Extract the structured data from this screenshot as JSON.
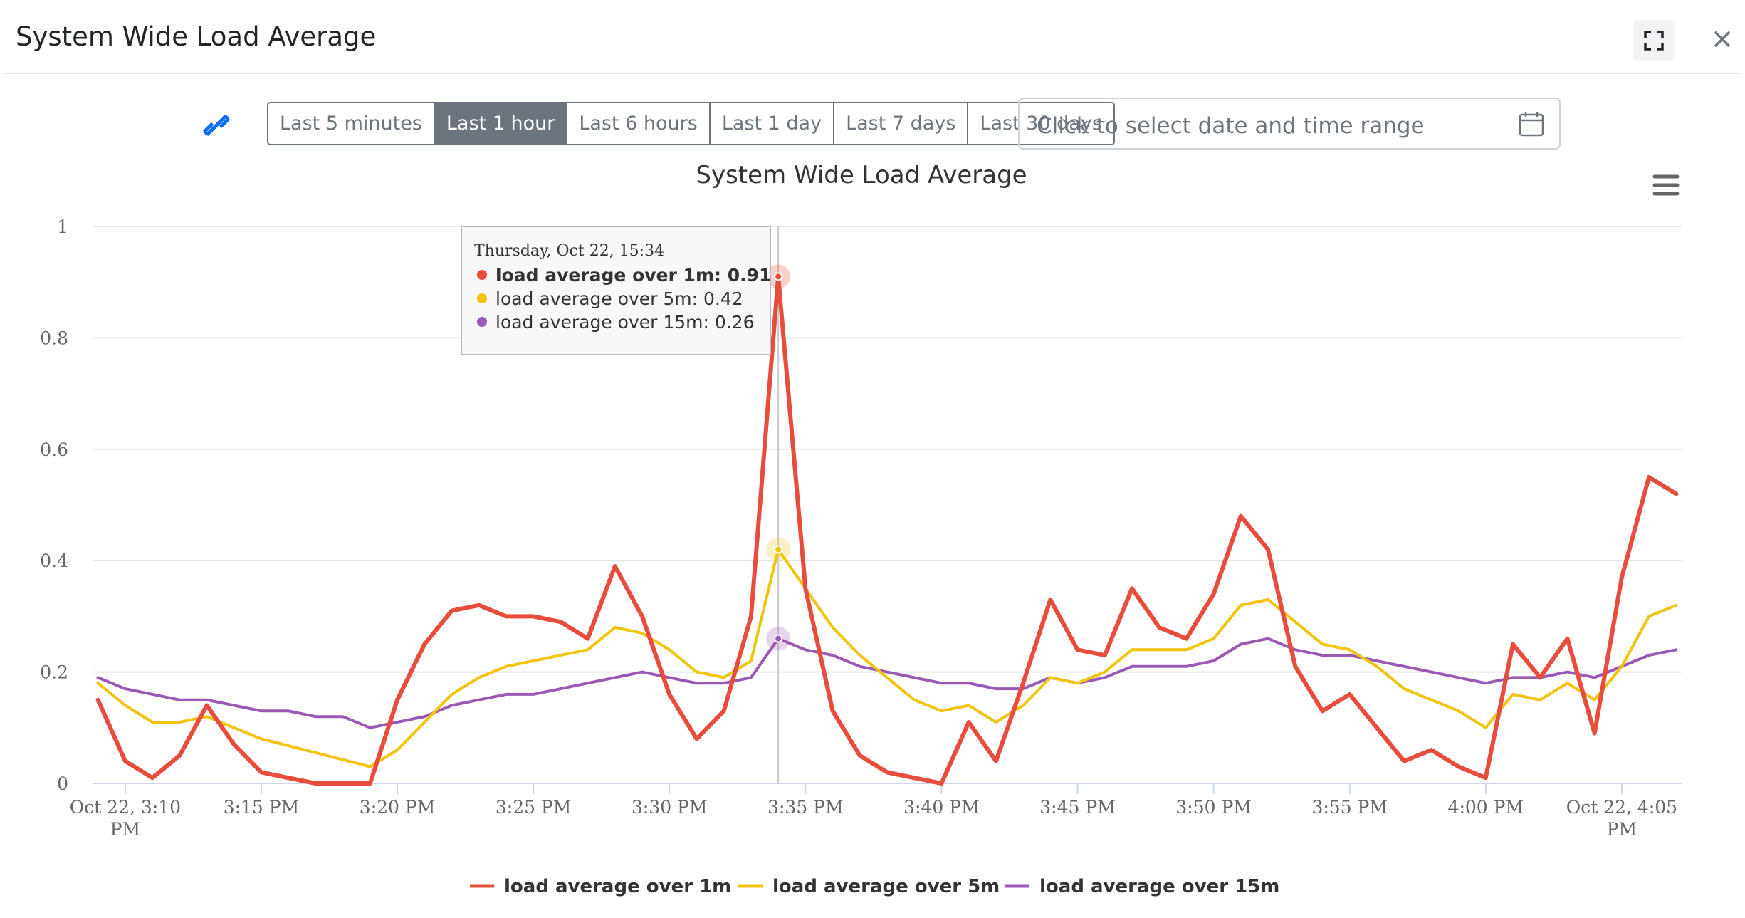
{
  "modal": {
    "title": "System Wide Load Average"
  },
  "icons": {
    "expand": "expand-icon",
    "close": "close-icon",
    "link": "link-icon",
    "calendar": "calendar-icon",
    "menu": "hamburger-menu-icon"
  },
  "time_ranges": [
    {
      "label": "Last 5 minutes",
      "active": false
    },
    {
      "label": "Last 1 hour",
      "active": true
    },
    {
      "label": "Last 6 hours",
      "active": false
    },
    {
      "label": "Last 1 day",
      "active": false
    },
    {
      "label": "Last 7 days",
      "active": false
    },
    {
      "label": "Last 30 days",
      "active": false
    }
  ],
  "date_picker": {
    "placeholder": "Click to select date and time range"
  },
  "colors": {
    "active_btn": "#6c757d",
    "link": "#0d6efd",
    "series_1m": "#e74c3c",
    "series_5m": "#f1c40f",
    "series_15m": "#9b59b6"
  },
  "chart_data": {
    "type": "line",
    "title": "System Wide Load Average",
    "xlabel": "",
    "ylabel": "",
    "ylim": [
      0,
      1
    ],
    "yticks": [
      0,
      0.2,
      0.4,
      0.6,
      0.8,
      1
    ],
    "ytick_labels": [
      "0",
      "0.2",
      "0.4",
      "0.6",
      "0.8",
      "1"
    ],
    "x_unit": "time (minutes, Oct 22 PM)",
    "xlim": [
      "3:09 PM",
      "4:07 PM"
    ],
    "x_ticks": [
      {
        "label": "Oct 22, 3:10 PM",
        "time": "3:10 PM"
      },
      {
        "label": "3:15 PM",
        "time": "3:15 PM"
      },
      {
        "label": "3:20 PM",
        "time": "3:20 PM"
      },
      {
        "label": "3:25 PM",
        "time": "3:25 PM"
      },
      {
        "label": "3:30 PM",
        "time": "3:30 PM"
      },
      {
        "label": "3:35 PM",
        "time": "3:35 PM"
      },
      {
        "label": "3:40 PM",
        "time": "3:40 PM"
      },
      {
        "label": "3:45 PM",
        "time": "3:45 PM"
      },
      {
        "label": "3:50 PM",
        "time": "3:50 PM"
      },
      {
        "label": "3:55 PM",
        "time": "3:55 PM"
      },
      {
        "label": "4:00 PM",
        "time": "4:00 PM"
      },
      {
        "label": "Oct 22, 4:05 PM",
        "time": "4:05 PM"
      }
    ],
    "grid": true,
    "legend": "bottom-center",
    "series": [
      {
        "name": "load average over 1m",
        "color": "#e74c3c",
        "points": [
          [
            "3:09 PM",
            0.15
          ],
          [
            "3:10 PM",
            0.04
          ],
          [
            "3:11 PM",
            0.01
          ],
          [
            "3:12 PM",
            0.05
          ],
          [
            "3:13 PM",
            0.14
          ],
          [
            "3:14 PM",
            0.07
          ],
          [
            "3:15 PM",
            0.02
          ],
          [
            "3:17 PM",
            0.0
          ],
          [
            "3:19 PM",
            0.0
          ],
          [
            "3:20 PM",
            0.15
          ],
          [
            "3:21 PM",
            0.25
          ],
          [
            "3:22 PM",
            0.31
          ],
          [
            "3:23 PM",
            0.32
          ],
          [
            "3:24 PM",
            0.3
          ],
          [
            "3:25 PM",
            0.3
          ],
          [
            "3:26 PM",
            0.29
          ],
          [
            "3:27 PM",
            0.26
          ],
          [
            "3:28 PM",
            0.39
          ],
          [
            "3:29 PM",
            0.3
          ],
          [
            "3:30 PM",
            0.16
          ],
          [
            "3:31 PM",
            0.08
          ],
          [
            "3:32 PM",
            0.13
          ],
          [
            "3:33 PM",
            0.3
          ],
          [
            "3:34 PM",
            0.91
          ],
          [
            "3:35 PM",
            0.35
          ],
          [
            "3:36 PM",
            0.13
          ],
          [
            "3:37 PM",
            0.05
          ],
          [
            "3:38 PM",
            0.02
          ],
          [
            "3:40 PM",
            0.0
          ],
          [
            "3:41 PM",
            0.11
          ],
          [
            "3:42 PM",
            0.04
          ],
          [
            "3:43 PM",
            0.18
          ],
          [
            "3:44 PM",
            0.33
          ],
          [
            "3:45 PM",
            0.24
          ],
          [
            "3:46 PM",
            0.23
          ],
          [
            "3:47 PM",
            0.35
          ],
          [
            "3:48 PM",
            0.28
          ],
          [
            "3:49 PM",
            0.26
          ],
          [
            "3:50 PM",
            0.34
          ],
          [
            "3:51 PM",
            0.48
          ],
          [
            "3:52 PM",
            0.42
          ],
          [
            "3:53 PM",
            0.21
          ],
          [
            "3:54 PM",
            0.13
          ],
          [
            "3:55 PM",
            0.16
          ],
          [
            "3:56 PM",
            0.1
          ],
          [
            "3:57 PM",
            0.04
          ],
          [
            "3:58 PM",
            0.06
          ],
          [
            "3:59 PM",
            0.03
          ],
          [
            "4:00 PM",
            0.01
          ],
          [
            "4:01 PM",
            0.25
          ],
          [
            "4:02 PM",
            0.19
          ],
          [
            "4:03 PM",
            0.26
          ],
          [
            "4:04 PM",
            0.09
          ],
          [
            "4:05 PM",
            0.37
          ],
          [
            "4:06 PM",
            0.55
          ],
          [
            "4:07 PM",
            0.52
          ]
        ]
      },
      {
        "name": "load average over 5m",
        "color": "#f1c40f",
        "points": [
          [
            "3:09 PM",
            0.18
          ],
          [
            "3:10 PM",
            0.14
          ],
          [
            "3:11 PM",
            0.11
          ],
          [
            "3:12 PM",
            0.11
          ],
          [
            "3:13 PM",
            0.12
          ],
          [
            "3:14 PM",
            0.1
          ],
          [
            "3:15 PM",
            0.08
          ],
          [
            "3:19 PM",
            0.03
          ],
          [
            "3:20 PM",
            0.06
          ],
          [
            "3:21 PM",
            0.11
          ],
          [
            "3:22 PM",
            0.16
          ],
          [
            "3:23 PM",
            0.19
          ],
          [
            "3:24 PM",
            0.21
          ],
          [
            "3:26 PM",
            0.23
          ],
          [
            "3:27 PM",
            0.24
          ],
          [
            "3:28 PM",
            0.28
          ],
          [
            "3:29 PM",
            0.27
          ],
          [
            "3:30 PM",
            0.24
          ],
          [
            "3:31 PM",
            0.2
          ],
          [
            "3:32 PM",
            0.19
          ],
          [
            "3:33 PM",
            0.22
          ],
          [
            "3:34 PM",
            0.42
          ],
          [
            "3:35 PM",
            0.35
          ],
          [
            "3:36 PM",
            0.28
          ],
          [
            "3:37 PM",
            0.23
          ],
          [
            "3:38 PM",
            0.19
          ],
          [
            "3:39 PM",
            0.15
          ],
          [
            "3:40 PM",
            0.13
          ],
          [
            "3:41 PM",
            0.14
          ],
          [
            "3:42 PM",
            0.11
          ],
          [
            "3:43 PM",
            0.14
          ],
          [
            "3:44 PM",
            0.19
          ],
          [
            "3:45 PM",
            0.18
          ],
          [
            "3:46 PM",
            0.2
          ],
          [
            "3:47 PM",
            0.24
          ],
          [
            "3:49 PM",
            0.24
          ],
          [
            "3:50 PM",
            0.26
          ],
          [
            "3:51 PM",
            0.32
          ],
          [
            "3:52 PM",
            0.33
          ],
          [
            "3:53 PM",
            0.29
          ],
          [
            "3:54 PM",
            0.25
          ],
          [
            "3:55 PM",
            0.24
          ],
          [
            "3:56 PM",
            0.21
          ],
          [
            "3:57 PM",
            0.17
          ],
          [
            "3:59 PM",
            0.13
          ],
          [
            "4:00 PM",
            0.1
          ],
          [
            "4:01 PM",
            0.16
          ],
          [
            "4:02 PM",
            0.15
          ],
          [
            "4:03 PM",
            0.18
          ],
          [
            "4:04 PM",
            0.15
          ],
          [
            "4:05 PM",
            0.21
          ],
          [
            "4:06 PM",
            0.3
          ],
          [
            "4:07 PM",
            0.32
          ]
        ]
      },
      {
        "name": "load average over 15m",
        "color": "#9b59b6",
        "points": [
          [
            "3:09 PM",
            0.19
          ],
          [
            "3:10 PM",
            0.17
          ],
          [
            "3:11 PM",
            0.16
          ],
          [
            "3:12 PM",
            0.15
          ],
          [
            "3:13 PM",
            0.15
          ],
          [
            "3:14 PM",
            0.14
          ],
          [
            "3:15 PM",
            0.13
          ],
          [
            "3:16 PM",
            0.13
          ],
          [
            "3:17 PM",
            0.12
          ],
          [
            "3:18 PM",
            0.12
          ],
          [
            "3:19 PM",
            0.1
          ],
          [
            "3:20 PM",
            0.11
          ],
          [
            "3:21 PM",
            0.12
          ],
          [
            "3:22 PM",
            0.14
          ],
          [
            "3:23 PM",
            0.15
          ],
          [
            "3:24 PM",
            0.16
          ],
          [
            "3:25 PM",
            0.16
          ],
          [
            "3:26 PM",
            0.17
          ],
          [
            "3:27 PM",
            0.18
          ],
          [
            "3:28 PM",
            0.19
          ],
          [
            "3:29 PM",
            0.2
          ],
          [
            "3:30 PM",
            0.19
          ],
          [
            "3:31 PM",
            0.18
          ],
          [
            "3:32 PM",
            0.18
          ],
          [
            "3:33 PM",
            0.19
          ],
          [
            "3:34 PM",
            0.26
          ],
          [
            "3:35 PM",
            0.24
          ],
          [
            "3:36 PM",
            0.23
          ],
          [
            "3:37 PM",
            0.21
          ],
          [
            "3:38 PM",
            0.2
          ],
          [
            "3:39 PM",
            0.19
          ],
          [
            "3:40 PM",
            0.18
          ],
          [
            "3:41 PM",
            0.18
          ],
          [
            "3:42 PM",
            0.17
          ],
          [
            "3:43 PM",
            0.17
          ],
          [
            "3:44 PM",
            0.19
          ],
          [
            "3:45 PM",
            0.18
          ],
          [
            "3:46 PM",
            0.19
          ],
          [
            "3:47 PM",
            0.21
          ],
          [
            "3:49 PM",
            0.21
          ],
          [
            "3:50 PM",
            0.22
          ],
          [
            "3:51 PM",
            0.25
          ],
          [
            "3:52 PM",
            0.26
          ],
          [
            "3:53 PM",
            0.24
          ],
          [
            "3:54 PM",
            0.23
          ],
          [
            "3:55 PM",
            0.23
          ],
          [
            "3:56 PM",
            0.22
          ],
          [
            "3:57 PM",
            0.21
          ],
          [
            "3:58 PM",
            0.2
          ],
          [
            "3:59 PM",
            0.19
          ],
          [
            "4:00 PM",
            0.18
          ],
          [
            "4:01 PM",
            0.19
          ],
          [
            "4:02 PM",
            0.19
          ],
          [
            "4:03 PM",
            0.2
          ],
          [
            "4:04 PM",
            0.19
          ],
          [
            "4:05 PM",
            0.21
          ],
          [
            "4:06 PM",
            0.23
          ],
          [
            "4:07 PM",
            0.24
          ]
        ]
      }
    ],
    "tooltip": {
      "time": "3:34 PM",
      "header": "Thursday, Oct 22, 15:34",
      "rows": [
        {
          "label": "load average over 1m: ",
          "value": "0.91",
          "color": "#e74c3c",
          "bold": true,
          "series": 0
        },
        {
          "label": "load average over 5m: ",
          "value": "0.42",
          "color": "#f1c40f",
          "bold": false,
          "series": 1
        },
        {
          "label": "load average over 15m: ",
          "value": "0.26",
          "color": "#9b59b6",
          "bold": false,
          "series": 2
        }
      ]
    }
  }
}
